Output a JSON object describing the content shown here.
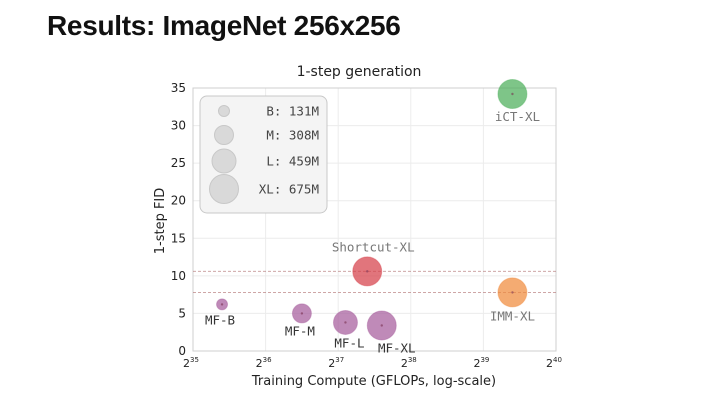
{
  "slide": {
    "title": "Results: ImageNet 256x256"
  },
  "chart_data": {
    "type": "scatter",
    "title": "1-step generation",
    "xlabel": "Training Compute (GFLOPs, log-scale)",
    "ylabel": "1-step FID",
    "x_scale": "log2",
    "x_ticks": [
      {
        "base": "2",
        "exp": "35",
        "value": 35
      },
      {
        "base": "2",
        "exp": "36",
        "value": 36
      },
      {
        "base": "2",
        "exp": "37",
        "value": 37
      },
      {
        "base": "2",
        "exp": "38",
        "value": 38
      },
      {
        "base": "2",
        "exp": "39",
        "value": 39
      },
      {
        "base": "2",
        "exp": "40",
        "value": 40
      }
    ],
    "xlim_log2": [
      35,
      40
    ],
    "y_ticks": [
      "0",
      "5",
      "10",
      "15",
      "20",
      "25",
      "30",
      "35"
    ],
    "ylim": [
      0,
      35
    ],
    "grid": true,
    "reference_lines": [
      10.6,
      7.8
    ],
    "points": [
      {
        "name": "MF-B",
        "log2_compute": 35.4,
        "fid": 6.2,
        "size": "B",
        "color": "#a65d9c"
      },
      {
        "name": "MF-M",
        "log2_compute": 36.5,
        "fid": 5.0,
        "size": "M",
        "color": "#a65d9c"
      },
      {
        "name": "MF-L",
        "log2_compute": 37.1,
        "fid": 3.8,
        "size": "L",
        "color": "#a65d9c"
      },
      {
        "name": "MF-XL",
        "log2_compute": 37.6,
        "fid": 3.4,
        "size": "XL",
        "color": "#a65d9c"
      },
      {
        "name": "Shortcut-XL",
        "log2_compute": 37.4,
        "fid": 10.6,
        "size": "XL",
        "color": "#d6404a"
      },
      {
        "name": "IMM-XL",
        "log2_compute": 39.4,
        "fid": 7.8,
        "size": "XL",
        "color": "#f08a3c"
      },
      {
        "name": "iCT-XL",
        "log2_compute": 39.4,
        "fid": 34.2,
        "size": "XL",
        "color": "#4caf5a"
      }
    ],
    "legend": {
      "placement": "top-left",
      "entries": [
        {
          "key": "B",
          "label": "B: 131M"
        },
        {
          "key": "M",
          "label": "M: 308M"
        },
        {
          "key": "L",
          "label": "L: 459M"
        },
        {
          "key": "XL",
          "label": "XL: 675M"
        }
      ]
    }
  }
}
